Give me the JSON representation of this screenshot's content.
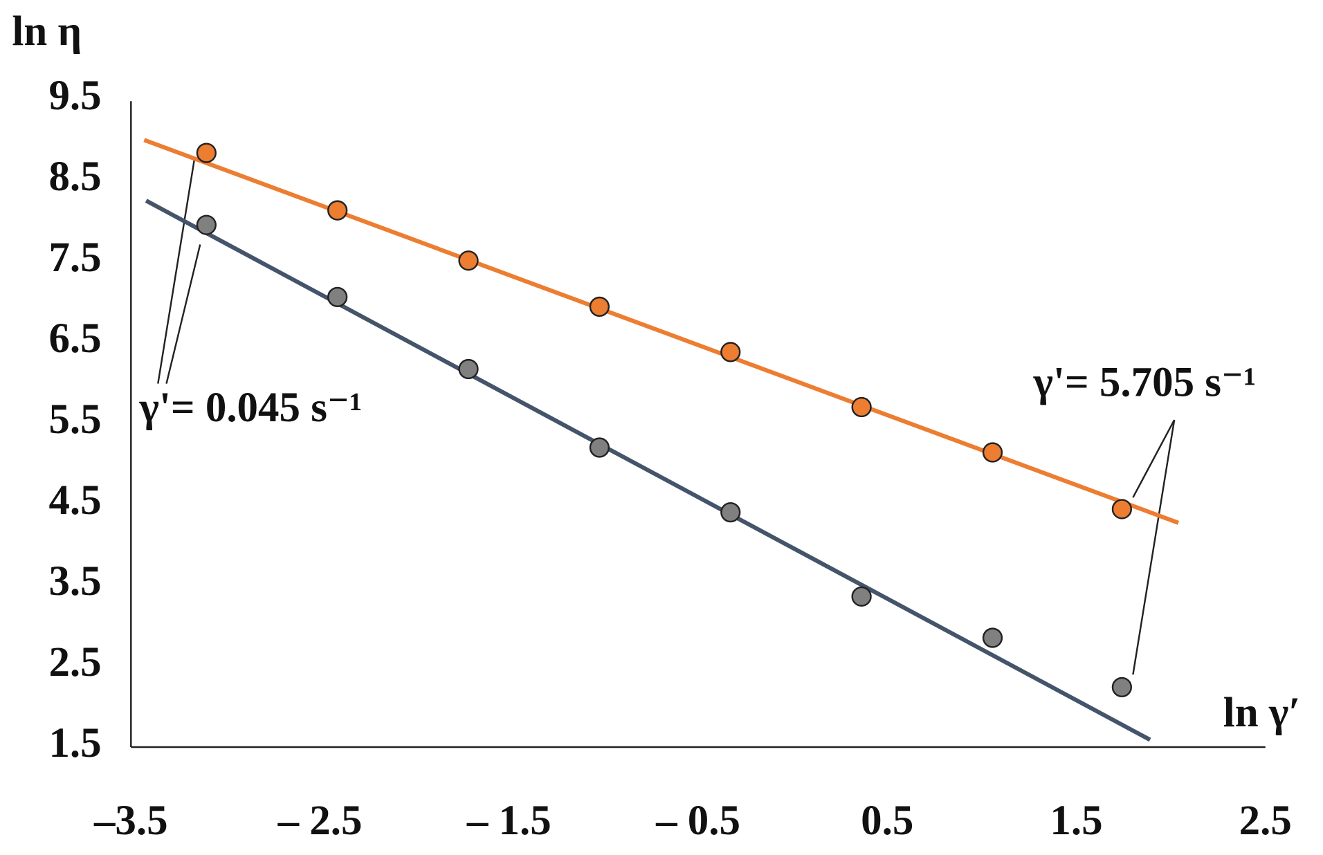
{
  "chart_data": {
    "type": "scatter",
    "ylabel": "ln η",
    "xlabel": "ln γ′",
    "xlim": [
      -3.5,
      2.5
    ],
    "ylim": [
      1.5,
      9.5
    ],
    "xticks": [
      {
        "value": -3.5,
        "label": "–3.5"
      },
      {
        "value": -2.5,
        "label": "– 2.5"
      },
      {
        "value": -1.5,
        "label": "– 1.5"
      },
      {
        "value": -0.5,
        "label": "– 0.5"
      },
      0.5,
      1.5,
      2.5
    ],
    "yticks": [
      1.5,
      2.5,
      3.5,
      4.5,
      5.5,
      6.5,
      7.5,
      8.5,
      9.5
    ],
    "x": [
      -3.101,
      -2.408,
      -1.715,
      -1.022,
      -0.329,
      0.364,
      1.057,
      1.741
    ],
    "series": [
      {
        "color": "#ed7d31",
        "values": [
          8.84,
          8.13,
          7.51,
          6.94,
          6.38,
          5.7,
          5.14,
          4.44
        ]
      },
      {
        "color": "#808080",
        "values": [
          7.95,
          7.06,
          6.17,
          5.2,
          4.4,
          3.36,
          2.85,
          2.24
        ]
      }
    ],
    "trendlines": [
      {
        "color": "#ed7d31",
        "x": [
          -3.43,
          2.04
        ],
        "values": [
          9.0,
          4.27
        ]
      },
      {
        "color": "#44546a",
        "x": [
          -3.42,
          1.89
        ],
        "values": [
          8.25,
          1.59
        ]
      }
    ],
    "annotations": [
      "γ'= 0.045 s⁻¹",
      "γ'= 5.705 s⁻¹"
    ]
  }
}
